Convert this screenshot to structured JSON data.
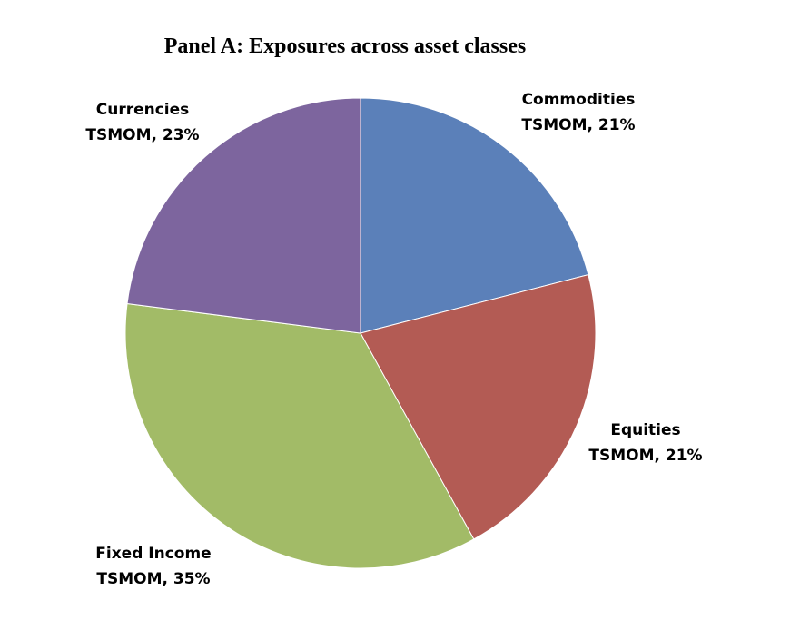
{
  "chart_data": {
    "type": "pie",
    "title": "Panel A: Exposures across asset classes",
    "slices": [
      {
        "name": "Commodities",
        "label_line1": "Commodities",
        "label_line2": "TSMOM, 21%",
        "value": 21,
        "color": "#5b80b9"
      },
      {
        "name": "Equities",
        "label_line1": "Equities",
        "label_line2": "TSMOM, 21%",
        "value": 21,
        "color": "#b35b54"
      },
      {
        "name": "Fixed Income",
        "label_line1": "Fixed Income",
        "label_line2": "TSMOM, 35%",
        "value": 35,
        "color": "#a2bb67"
      },
      {
        "name": "Currencies",
        "label_line1": "Currencies",
        "label_line2": "TSMOM, 23%",
        "value": 23,
        "color": "#7d659e"
      }
    ]
  }
}
